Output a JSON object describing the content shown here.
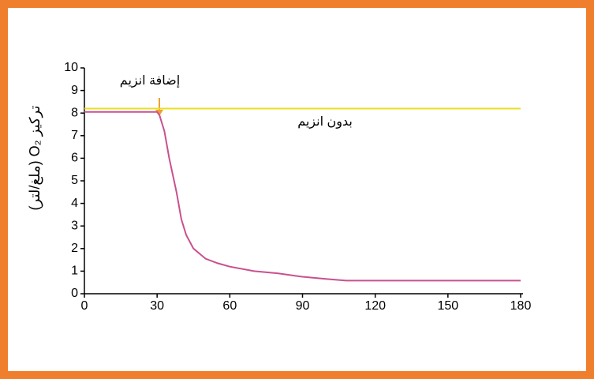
{
  "chart_data": {
    "type": "line",
    "y_label": "تركيز O₂ (ملغ/لتر)",
    "annotations": [
      "إضافة انزيم",
      "بدون انزيم"
    ],
    "xlim": [
      0,
      180
    ],
    "xticks": [
      0,
      30,
      60,
      90,
      120,
      150,
      180
    ],
    "ylim": [
      0,
      10
    ],
    "yticks": [
      0,
      1,
      2,
      3,
      4,
      5,
      6,
      7,
      8,
      9,
      10
    ],
    "grid": false,
    "series": [
      {
        "color": "#c9508f",
        "x": [
          0,
          30,
          31,
          33,
          35,
          38,
          40,
          42,
          45,
          50,
          55,
          60,
          70,
          80,
          90,
          100,
          108,
          120,
          180
        ],
        "values": [
          8.05,
          8.05,
          7.9,
          7.2,
          6.0,
          4.5,
          3.3,
          2.6,
          2.0,
          1.55,
          1.35,
          1.2,
          1.0,
          0.9,
          0.75,
          0.65,
          0.58,
          0.58,
          0.58
        ]
      },
      {
        "color": "#e8e020",
        "x": [
          0,
          180
        ],
        "values": [
          8.2,
          8.2
        ]
      }
    ]
  }
}
